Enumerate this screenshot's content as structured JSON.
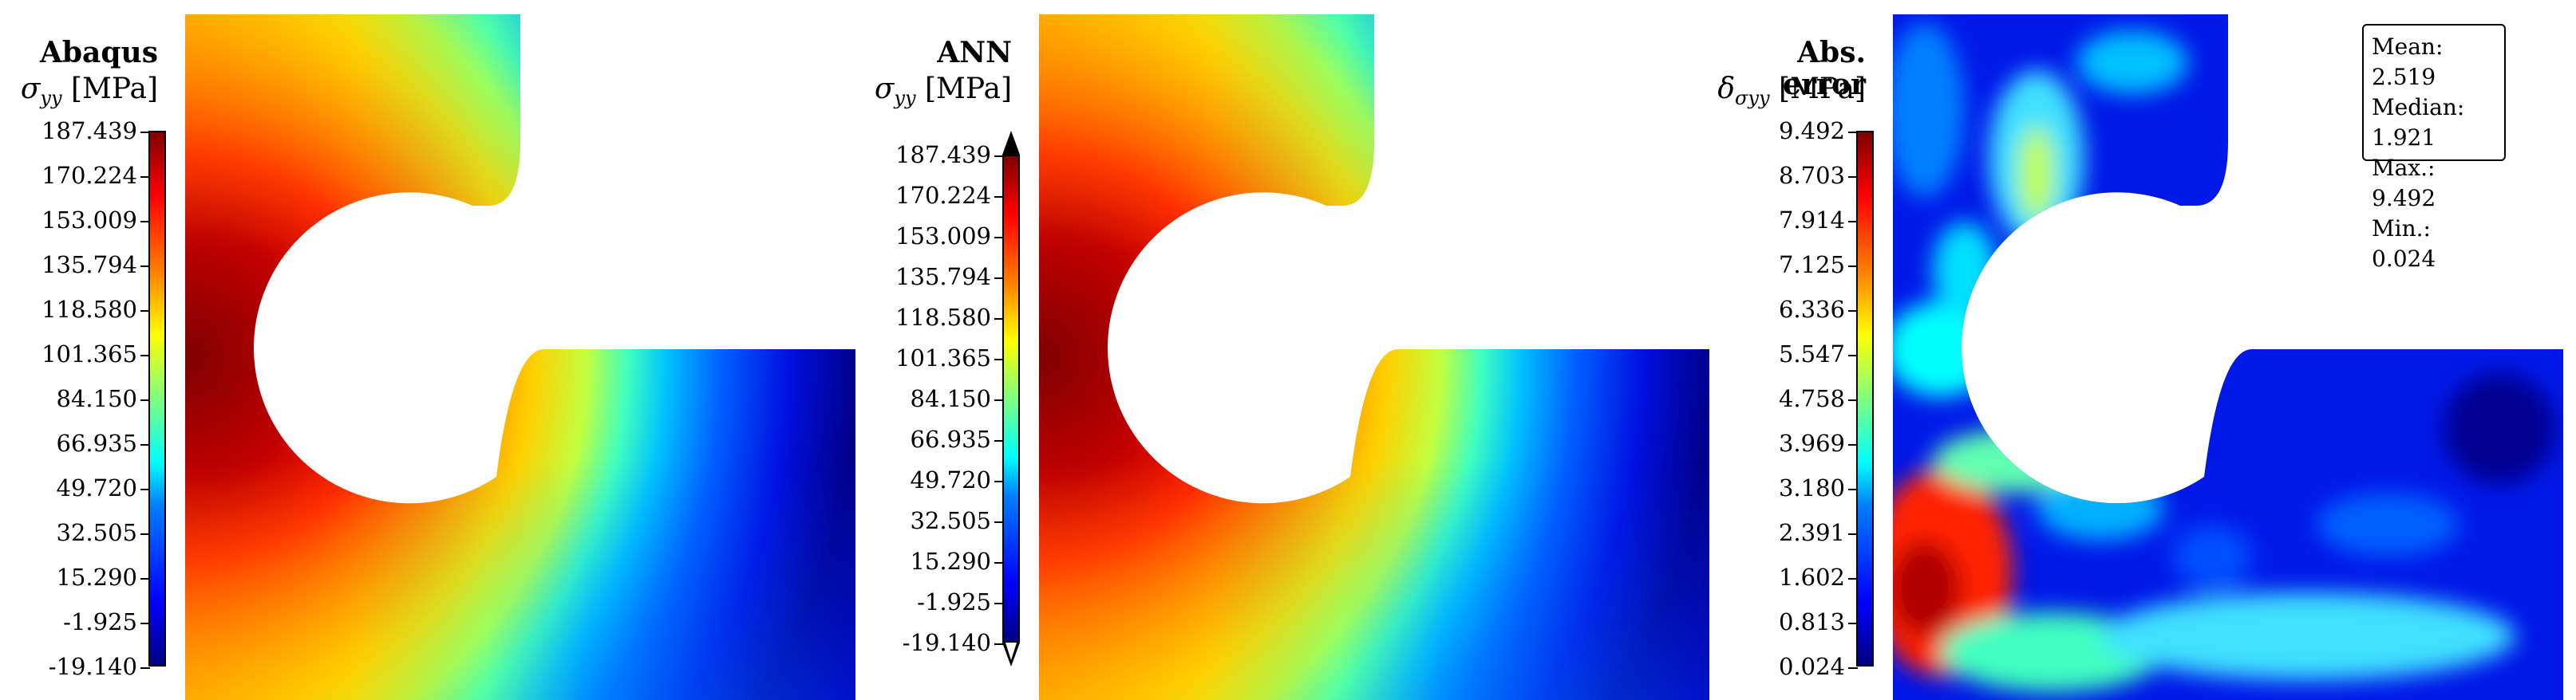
{
  "panels": [
    {
      "title": "Abaqus",
      "quantity_symbol": "σ",
      "quantity_subscript": "yy",
      "quantity_unit": "[MPa]",
      "colorbar_ticks": [
        "187.439",
        "170.224",
        "153.009",
        "135.794",
        "118.580",
        "101.365",
        "84.150",
        "66.935",
        "49.720",
        "32.505",
        "15.290",
        "-1.925",
        "-19.140"
      ],
      "colorbar_extend_arrows": false
    },
    {
      "title": "ANN",
      "quantity_symbol": "σ",
      "quantity_subscript": "yy",
      "quantity_unit": "[MPa]",
      "colorbar_ticks": [
        "187.439",
        "170.224",
        "153.009",
        "135.794",
        "118.580",
        "101.365",
        "84.150",
        "66.935",
        "49.720",
        "32.505",
        "15.290",
        "-1.925",
        "-19.140"
      ],
      "colorbar_extend_arrows": true
    },
    {
      "title": "Abs. error",
      "quantity_symbol": "δ",
      "quantity_subscript": "σyy",
      "quantity_unit": "[MPa]",
      "colorbar_ticks": [
        "9.492",
        "8.703",
        "7.914",
        "7.125",
        "6.336",
        "5.547",
        "4.758",
        "3.969",
        "3.180",
        "2.391",
        "1.602",
        "0.813",
        "0.024"
      ],
      "colorbar_extend_arrows": false
    }
  ],
  "stats_box": {
    "mean": "Mean: 2.519",
    "median": "Median: 1.921",
    "max": "Max.: 9.492",
    "min": "Min.: 0.024"
  },
  "colormap": "jet"
}
